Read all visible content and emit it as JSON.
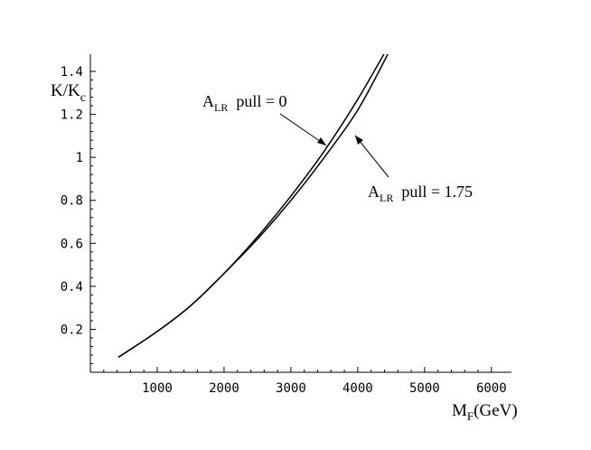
{
  "chart_data": {
    "type": "line",
    "title": "",
    "xlabel": {
      "main": "M",
      "sub": "F",
      "rest": "(GeV)"
    },
    "ylabel": {
      "main": "K/K",
      "sub": "c"
    },
    "xlim": [
      0,
      6300
    ],
    "ylim": [
      0,
      1.48
    ],
    "xticks": [
      1000,
      2000,
      3000,
      4000,
      5000,
      6000
    ],
    "yticks": [
      0.2,
      0.4,
      0.6,
      0.8,
      1,
      1.2,
      1.4
    ],
    "ytick_labels": [
      "0.2",
      "0.4",
      "0.6",
      "0.8",
      "1",
      "1.2",
      "1.4"
    ],
    "xtick_labels": [
      "1000",
      "2000",
      "3000",
      "4000",
      "5000",
      "6000"
    ],
    "grid": false,
    "series": [
      {
        "x": [
          420,
          1000,
          1500,
          2000,
          2500,
          3000,
          3500,
          4000,
          4500
        ],
        "y": [
          0.07,
          0.19,
          0.31,
          0.46,
          0.63,
          0.82,
          1.03,
          1.27,
          1.54
        ]
      },
      {
        "x": [
          420,
          1000,
          1500,
          2000,
          2500,
          3000,
          3500,
          4000,
          4450
        ],
        "y": [
          0.07,
          0.19,
          0.31,
          0.46,
          0.62,
          0.8,
          1.0,
          1.22,
          1.48
        ]
      }
    ],
    "annotations": [
      {
        "main": "A",
        "sub": "LR",
        "rest": "  pull = 0",
        "target_series": 0
      },
      {
        "main": "A",
        "sub": "LR",
        "rest": "  pull = 1.75",
        "target_series": 1
      }
    ]
  }
}
